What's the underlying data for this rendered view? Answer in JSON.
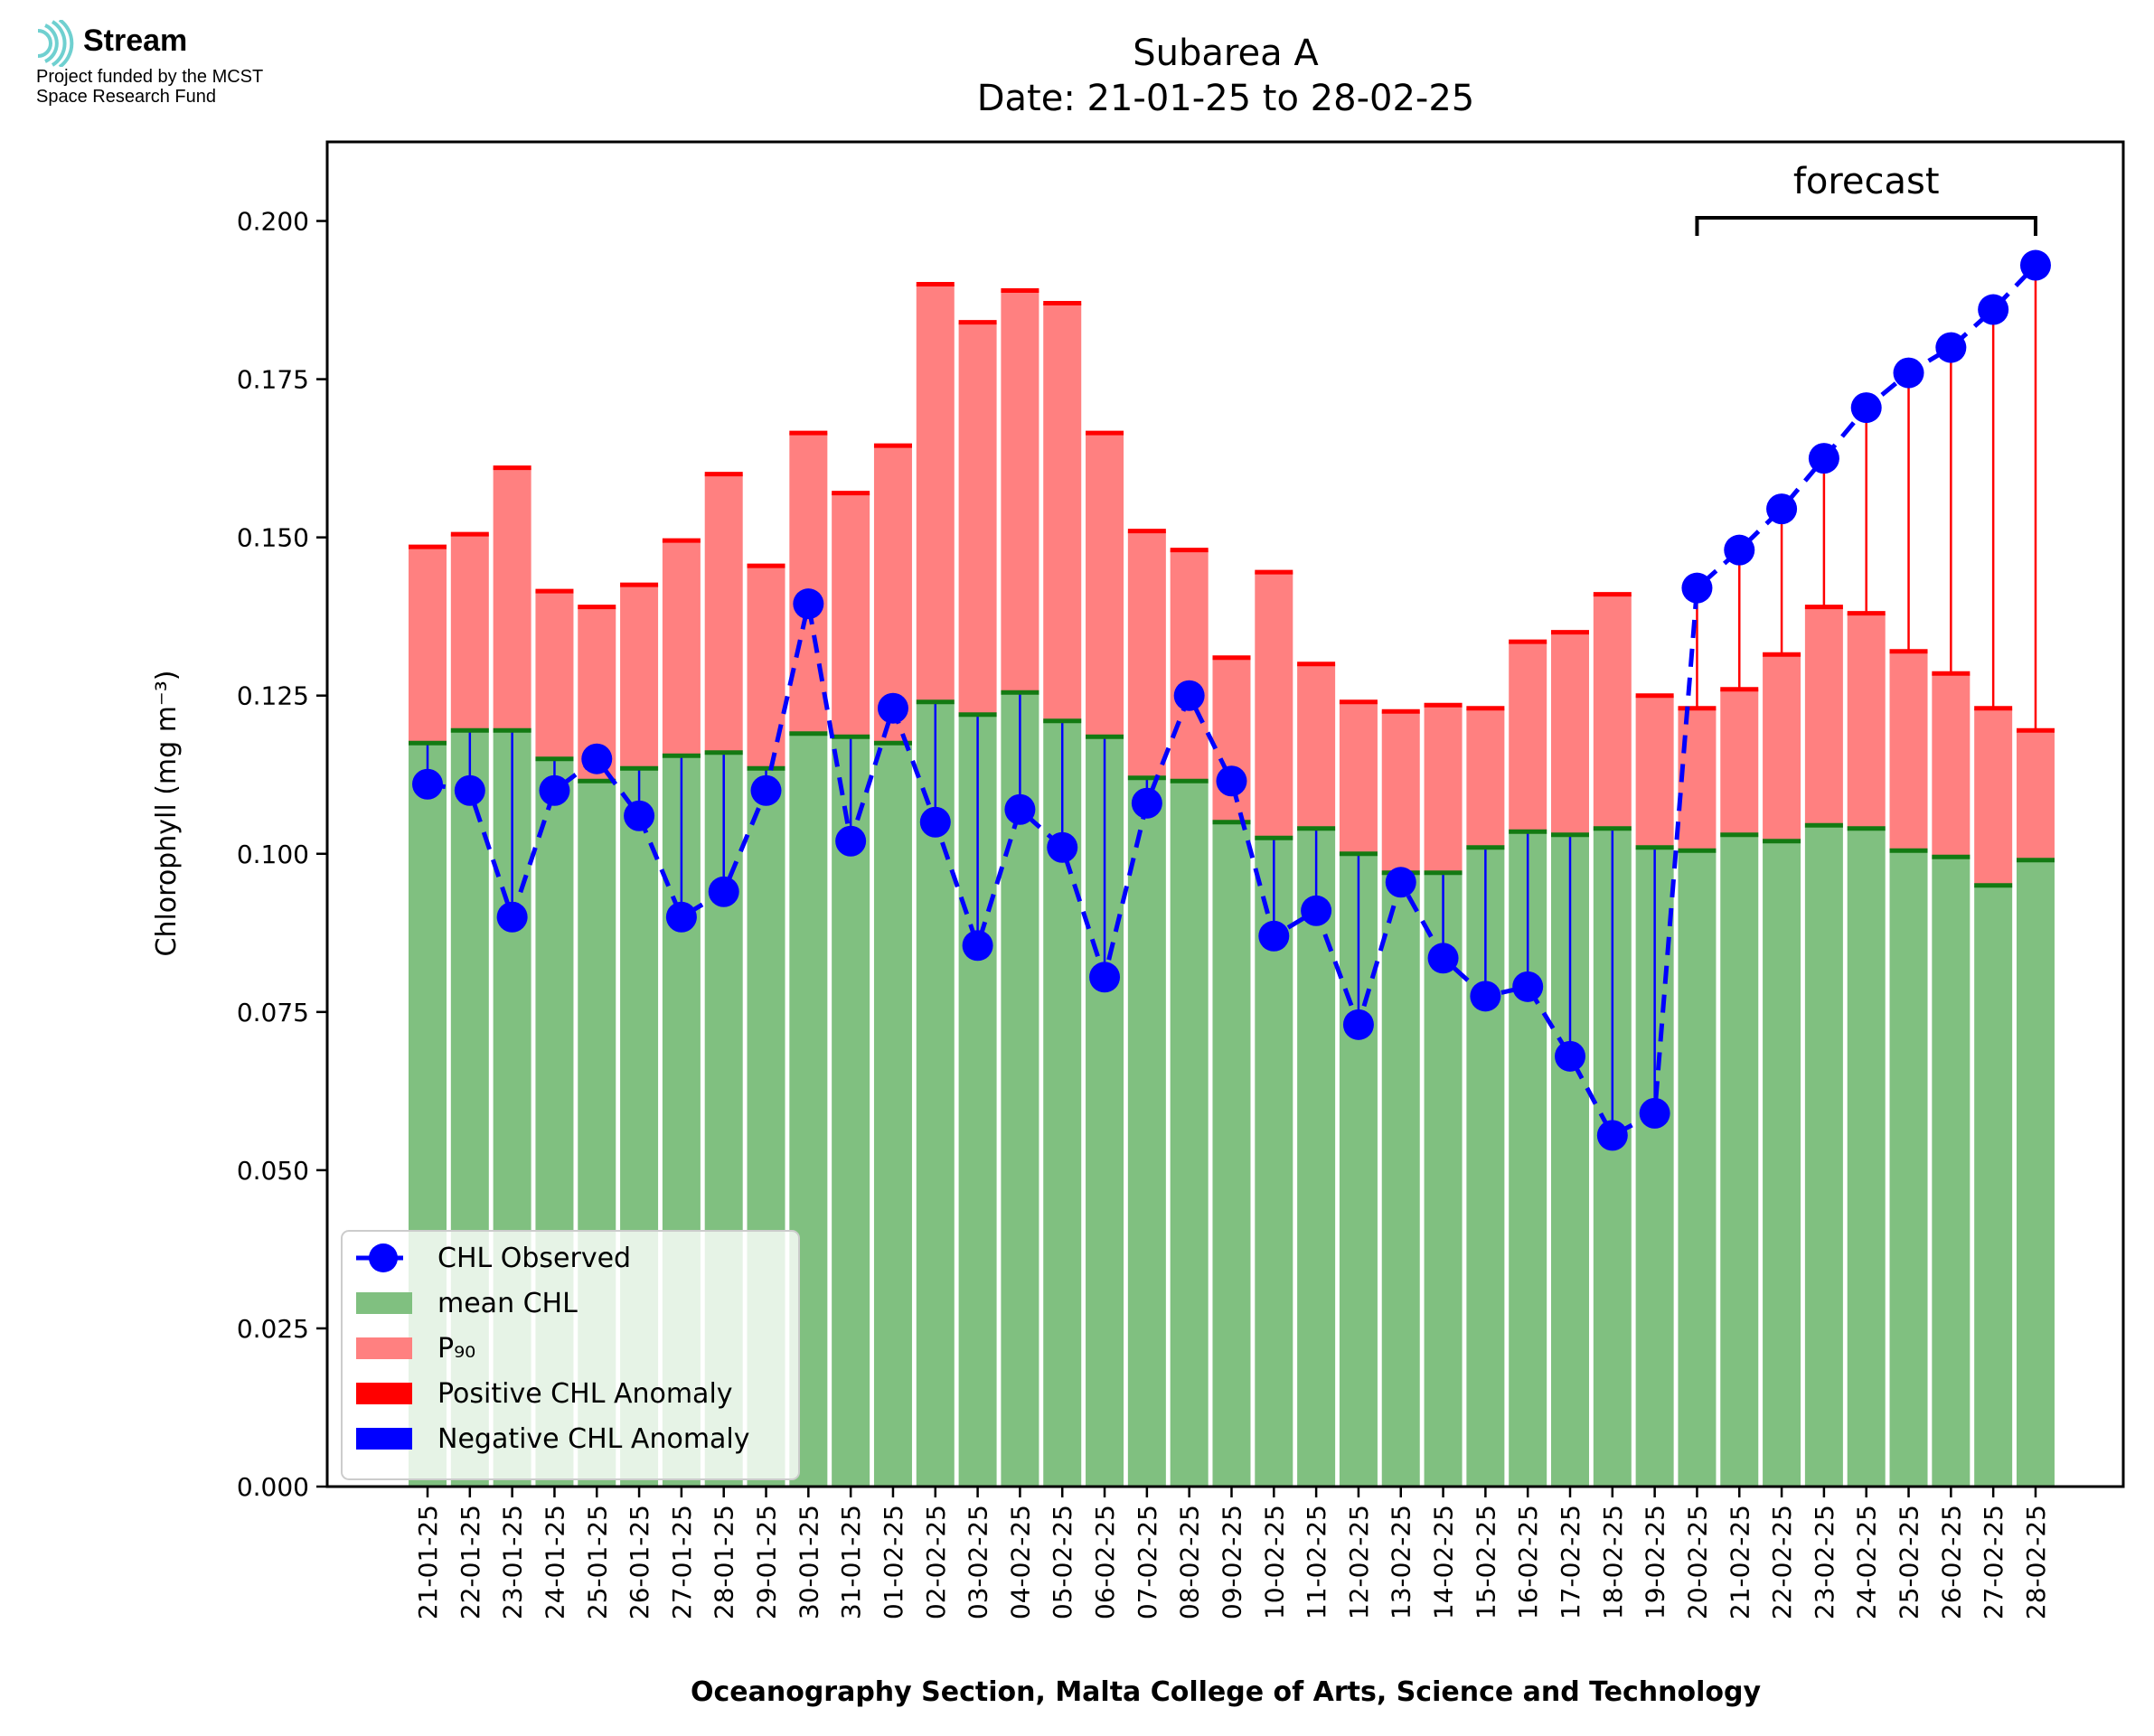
{
  "logo": {
    "name": "Stream",
    "subtitle_lines": [
      "Project funded by the MCST",
      "Space Research Fund"
    ]
  },
  "chart_data": {
    "type": "bar",
    "title_lines": [
      "Subarea A",
      "Date: 21-01-25 to 28-02-25"
    ],
    "xlabel": "Oceanography Section, Malta College of Arts, Science and Technology",
    "ylabel": "Chlorophyll (mg m⁻³)",
    "ylim": [
      0,
      0.2125
    ],
    "yticks": [
      "0.000",
      "0.025",
      "0.050",
      "0.075",
      "0.100",
      "0.125",
      "0.150",
      "0.175",
      "0.200"
    ],
    "grid": false,
    "legend_position": "lower-left",
    "annotation": {
      "text": "forecast",
      "from": "20-02-25",
      "to": "28-02-25"
    },
    "categories": [
      "21-01-25",
      "22-01-25",
      "23-01-25",
      "24-01-25",
      "25-01-25",
      "26-01-25",
      "27-01-25",
      "28-01-25",
      "29-01-25",
      "30-01-25",
      "31-01-25",
      "01-02-25",
      "02-02-25",
      "03-02-25",
      "04-02-25",
      "05-02-25",
      "06-02-25",
      "07-02-25",
      "08-02-25",
      "09-02-25",
      "10-02-25",
      "11-02-25",
      "12-02-25",
      "13-02-25",
      "14-02-25",
      "15-02-25",
      "16-02-25",
      "17-02-25",
      "18-02-25",
      "19-02-25",
      "20-02-25",
      "21-02-25",
      "22-02-25",
      "23-02-25",
      "24-02-25",
      "25-02-25",
      "26-02-25",
      "27-02-25",
      "28-02-25"
    ],
    "series": [
      {
        "name": "CHL Observed",
        "color": "#0000ff",
        "values": [
          0.111,
          0.11,
          0.09,
          0.11,
          0.115,
          0.106,
          0.09,
          0.094,
          0.11,
          0.1395,
          0.102,
          0.123,
          0.105,
          0.0855,
          0.107,
          0.101,
          0.0805,
          0.108,
          0.125,
          0.1115,
          0.087,
          0.091,
          0.073,
          0.0955,
          0.0835,
          0.0775,
          0.079,
          0.068,
          0.0555,
          0.059,
          0.142,
          0.148,
          0.1545,
          0.1625,
          0.1705,
          0.176,
          0.18,
          0.186,
          0.193
        ]
      },
      {
        "name": "mean CHL",
        "color": "#80c080",
        "values": [
          0.1175,
          0.1195,
          0.1195,
          0.115,
          0.1115,
          0.1135,
          0.1155,
          0.116,
          0.1135,
          0.119,
          0.1185,
          0.1175,
          0.124,
          0.122,
          0.1255,
          0.121,
          0.1185,
          0.112,
          0.1115,
          0.105,
          0.1025,
          0.104,
          0.1,
          0.097,
          0.097,
          0.101,
          0.1035,
          0.103,
          0.104,
          0.101,
          0.1005,
          0.103,
          0.102,
          0.1045,
          0.104,
          0.1005,
          0.0995,
          0.095,
          0.099
        ]
      },
      {
        "name": "P₉₀",
        "color": "#ff8080",
        "values": [
          0.1485,
          0.1505,
          0.161,
          0.1415,
          0.139,
          0.1425,
          0.1495,
          0.16,
          0.1455,
          0.1665,
          0.157,
          0.1645,
          0.19,
          0.184,
          0.189,
          0.187,
          0.1665,
          0.151,
          0.148,
          0.131,
          0.1445,
          0.13,
          0.124,
          0.1225,
          0.1235,
          0.123,
          0.1335,
          0.135,
          0.141,
          0.125,
          0.123,
          0.126,
          0.1315,
          0.139,
          0.138,
          0.132,
          0.1285,
          0.123,
          0.1195
        ]
      },
      {
        "name": "Positive CHL Anomaly",
        "color": "#ff0000"
      },
      {
        "name": "Negative CHL Anomaly",
        "color": "#0000ff"
      }
    ]
  }
}
